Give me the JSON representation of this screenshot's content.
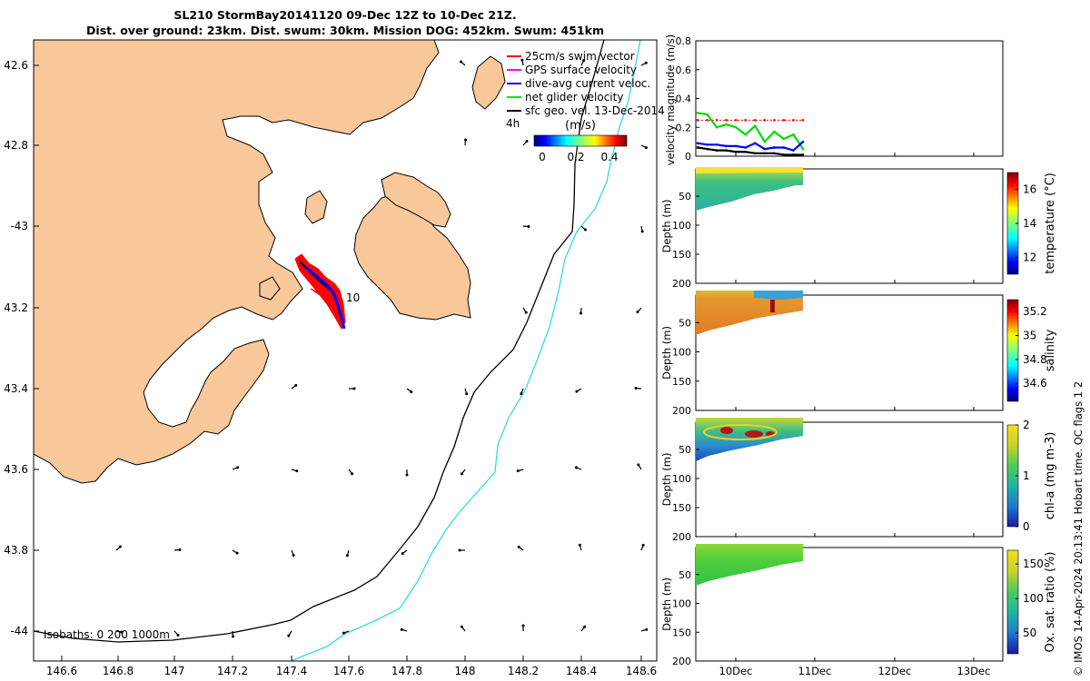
{
  "header": {
    "title_line1": "SL210 StormBay20141120 09-Dec 12Z to 10-Dec 21Z.",
    "title_line2": "Dist. over ground: 23km. Dist. swum: 30km. Mission DOG: 452km. Swum: 451km"
  },
  "map": {
    "lon_ticks": [
      "146.6",
      "146.8",
      "147",
      "147.2",
      "147.4",
      "147.6",
      "147.8",
      "148",
      "148.2",
      "148.4",
      "148.6"
    ],
    "lat_ticks": [
      "42.6",
      "42.8",
      "-43",
      "43.2",
      "43.4",
      "43.6",
      "43.8",
      "-44"
    ],
    "legend": [
      {
        "label": "25cm/s swim vector",
        "color": "#ff0000"
      },
      {
        "label": "GPS surface velocity",
        "color": "#ff00ff"
      },
      {
        "label": "dive-avg current veloc.",
        "color": "#0000ff"
      },
      {
        "label": "net glider velocity",
        "color": "#00ee00"
      },
      {
        "label": "sfc geo. vel. 13-Dec-2014",
        "color": "#000000"
      }
    ],
    "legend_extra": "4h",
    "colorbar_title": "(m/s)",
    "colorbar_ticks": [
      "0",
      "0.2",
      "0.4"
    ],
    "track_label": "10",
    "isobaths_label": "Isobaths: 0   200  1000m",
    "colors": {
      "land": "#f9c89a",
      "isobath_200": "#000000",
      "isobath_1000": "#33dddd",
      "track_red": "#ff0000",
      "track_black": "#000000",
      "track_blue": "#0000ff"
    }
  },
  "profiles": {
    "time_ticks": [
      "10Dec",
      "11Dec",
      "12Dec",
      "13Dec"
    ]
  },
  "chart_data": [
    {
      "type": "line",
      "ylabel": "velocity magnitude (m/s)",
      "ylim": [
        0,
        0.8
      ],
      "yticks": [
        "0",
        "0.2",
        "0.4",
        "0.6",
        "0.8"
      ],
      "x": [
        "09-Dec 12Z",
        "09-Dec 15Z",
        "09-Dec 18Z",
        "09-Dec 21Z",
        "10-Dec 00Z",
        "10-Dec 03Z",
        "10-Dec 06Z",
        "10-Dec 09Z",
        "10-Dec 12Z",
        "10-Dec 15Z",
        "10-Dec 18Z",
        "10-Dec 21Z"
      ],
      "series": [
        {
          "color": "#00dd00",
          "values": [
            0.3,
            0.29,
            0.2,
            0.22,
            0.2,
            0.15,
            0.21,
            0.1,
            0.17,
            0.12,
            0.15,
            0.05
          ]
        },
        {
          "color": "#ff0000",
          "values": [
            0.25,
            0.25,
            0.25,
            0.25,
            0.25,
            0.25,
            0.25,
            0.25,
            0.25,
            0.25,
            0.25,
            0.25
          ]
        },
        {
          "color": "#0000ff",
          "values": [
            0.09,
            0.08,
            0.08,
            0.07,
            0.07,
            0.06,
            0.09,
            0.05,
            0.06,
            0.06,
            0.04,
            0.1
          ]
        },
        {
          "color": "#000000",
          "values": [
            0.06,
            0.05,
            0.04,
            0.04,
            0.03,
            0.03,
            0.02,
            0.02,
            0.02,
            0.01,
            0.01,
            0.01
          ]
        }
      ]
    },
    {
      "type": "heatmap",
      "variable": "temperature",
      "colorbar_label": "temperature (°C)",
      "ylabel": "Depth (m)",
      "ylim": [
        200,
        0
      ],
      "yticks": [
        "0",
        "50",
        "100",
        "150",
        "200"
      ],
      "clim": [
        11,
        17
      ],
      "cticks": [
        "12",
        "14",
        "16"
      ],
      "max_depth_start": 72,
      "max_depth_end": 27
    },
    {
      "type": "heatmap",
      "variable": "salinity",
      "colorbar_label": "salinity",
      "ylabel": "Depth (m)",
      "ylim": [
        200,
        0
      ],
      "yticks": [
        "0",
        "50",
        "100",
        "150",
        "200"
      ],
      "clim": [
        34.45,
        35.3
      ],
      "cticks": [
        "34.6",
        "34.8",
        "35",
        "35.2"
      ],
      "max_depth_start": 72,
      "max_depth_end": 27
    },
    {
      "type": "heatmap",
      "variable": "chl-a",
      "colorbar_label": "chl-a (mg m-3)",
      "ylabel": "Depth (m)",
      "ylim": [
        200,
        0
      ],
      "yticks": [
        "0",
        "50",
        "100",
        "150",
        "200"
      ],
      "clim": [
        0,
        2
      ],
      "cticks": [
        "0",
        "1",
        "2"
      ],
      "max_depth_start": 72,
      "max_depth_end": 27
    },
    {
      "type": "heatmap",
      "variable": "oxygen",
      "colorbar_label": "Ox. sat. ratio (%)",
      "ylabel": "Depth (m)",
      "ylim": [
        200,
        0
      ],
      "yticks": [
        "0",
        "50",
        "100",
        "150",
        "200"
      ],
      "clim": [
        20,
        170
      ],
      "cticks": [
        "50",
        "100",
        "150"
      ],
      "max_depth_start": 72,
      "max_depth_end": 27
    }
  ],
  "footer": {
    "copyright": "© IMOS 14-Apr-2024 20:13:41 Hobart time. QC flags 1  2"
  }
}
